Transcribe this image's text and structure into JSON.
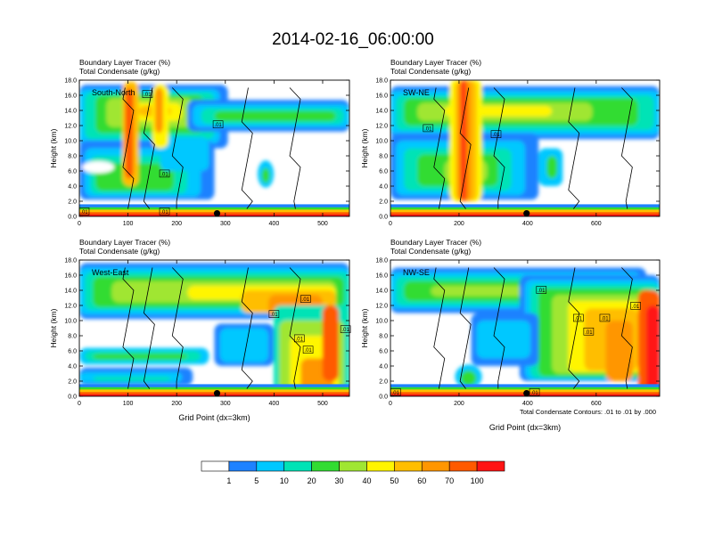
{
  "figure": {
    "title": "2014-02-16_06:00:00",
    "footnote": "Total Condensate Contours: .01 to .01 by .000",
    "xlabel": "Grid Point (dx=3km)"
  },
  "chart_data": [
    {
      "type": "heatmap",
      "panel": "South-North",
      "title_lines": [
        "Boundary Layer Tracer    (%)",
        "Total Condensate    (g/kg)"
      ],
      "ylabel": "Height (km)",
      "xlim": [
        0,
        555
      ],
      "ylim": [
        0,
        18
      ],
      "xticks": [
        0,
        100,
        200,
        300,
        400,
        500
      ],
      "yticks": [
        "0.0",
        "2.0",
        "4.0",
        "6.0",
        "8.0",
        "10.0",
        "12.0",
        "14.0",
        "16.0",
        "18.0"
      ],
      "marker_x": 283,
      "contour_labels": [
        {
          "text": ".01",
          "x": 140,
          "y": 16.1
        },
        {
          "text": ".01",
          "x": 285,
          "y": 12.1
        },
        {
          "text": ".01",
          "x": 175,
          "y": 5.6
        },
        {
          "text": ".01",
          "x": 10,
          "y": 0.6
        },
        {
          "text": ".01",
          "x": 175,
          "y": 0.6
        }
      ]
    },
    {
      "type": "heatmap",
      "panel": "SW-NE",
      "title_lines": [
        "Boundary Layer Tracer    (%)",
        "Total Condensate    (g/kg)"
      ],
      "ylabel": "Height (km)",
      "xlim": [
        0,
        785
      ],
      "ylim": [
        0,
        18
      ],
      "xticks": [
        0,
        200,
        400,
        600
      ],
      "yticks": [
        "0.0",
        "2.0",
        "4.0",
        "6.0",
        "8.0",
        "10.0",
        "12.0",
        "14.0",
        "16.0",
        "18.0"
      ],
      "marker_x": 397,
      "contour_labels": [
        {
          "text": ".01",
          "x": 110,
          "y": 11.6
        },
        {
          "text": ".01",
          "x": 308,
          "y": 10.8
        }
      ]
    },
    {
      "type": "heatmap",
      "panel": "West-East",
      "title_lines": [
        "Boundary Layer Tracer    (%)",
        "Total Condensate    (g/kg)"
      ],
      "ylabel": "Height (km)",
      "xlabel": "Grid Point (dx=3km)",
      "xlim": [
        0,
        555
      ],
      "ylim": [
        0,
        18
      ],
      "xticks": [
        0,
        100,
        200,
        300,
        400,
        500
      ],
      "yticks": [
        "0.0",
        "2.0",
        "4.0",
        "6.0",
        "8.0",
        "10.0",
        "12.0",
        "14.0",
        "16.0",
        "18.0"
      ],
      "marker_x": 283,
      "contour_labels": [
        {
          "text": ".01",
          "x": 465,
          "y": 12.8
        },
        {
          "text": ".01",
          "x": 400,
          "y": 10.8
        },
        {
          "text": ".01",
          "x": 452,
          "y": 7.6
        },
        {
          "text": ".01",
          "x": 470,
          "y": 6.1
        },
        {
          "text": ".01",
          "x": 547,
          "y": 8.8
        }
      ]
    },
    {
      "type": "heatmap",
      "panel": "NW-SE",
      "title_lines": [
        "Boundary Layer Tracer    (%)",
        "Total Condensate    (g/kg)"
      ],
      "ylabel": "Height (km)",
      "xlabel": "Grid Point (dx=3km)",
      "xlim": [
        0,
        785
      ],
      "ylim": [
        0,
        18
      ],
      "xticks": [
        0,
        200,
        400,
        600
      ],
      "yticks": [
        "0.0",
        "2.0",
        "4.0",
        "6.0",
        "8.0",
        "10.0",
        "12.0",
        "14.0",
        "16.0",
        "18.0"
      ],
      "marker_x": 397,
      "contour_labels": [
        {
          "text": ".01",
          "x": 440,
          "y": 14.0
        },
        {
          "text": ".01",
          "x": 548,
          "y": 10.3
        },
        {
          "text": ".01",
          "x": 625,
          "y": 10.3
        },
        {
          "text": ".01",
          "x": 715,
          "y": 11.9
        },
        {
          "text": ".01",
          "x": 578,
          "y": 8.5
        },
        {
          "text": ".01",
          "x": 15,
          "y": 0.5
        },
        {
          "text": ".01",
          "x": 420,
          "y": 0.5
        }
      ]
    },
    {
      "type": "colorbar",
      "labels": [
        "1",
        "5",
        "10",
        "20",
        "30",
        "40",
        "50",
        "60",
        "70",
        "100"
      ],
      "colors": [
        "#ffffff",
        "#1e82ff",
        "#00c8ff",
        "#00e3b6",
        "#32dc32",
        "#a0e632",
        "#fff500",
        "#ffbe00",
        "#ff9600",
        "#ff5a00",
        "#ff1414"
      ]
    }
  ]
}
